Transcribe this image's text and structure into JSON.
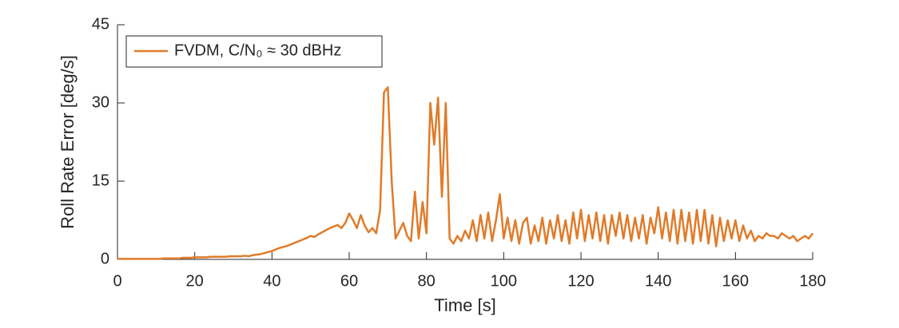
{
  "chart_data": {
    "type": "line",
    "xlabel": "Time [s]",
    "ylabel": "Roll Rate Error [deg/s]",
    "x": [
      0,
      1,
      2,
      3,
      4,
      5,
      6,
      7,
      8,
      9,
      10,
      11,
      12,
      13,
      14,
      15,
      16,
      17,
      18,
      19,
      20,
      21,
      22,
      23,
      24,
      25,
      26,
      27,
      28,
      29,
      30,
      31,
      32,
      33,
      34,
      35,
      36,
      37,
      38,
      39,
      40,
      41,
      42,
      43,
      44,
      45,
      46,
      47,
      48,
      49,
      50,
      51,
      52,
      53,
      54,
      55,
      56,
      57,
      58,
      59,
      60,
      61,
      62,
      63,
      64,
      65,
      66,
      67,
      68,
      69,
      70,
      71,
      72,
      73,
      74,
      75,
      76,
      77,
      78,
      79,
      80,
      81,
      82,
      83,
      84,
      85,
      86,
      87,
      88,
      89,
      90,
      91,
      92,
      93,
      94,
      95,
      96,
      97,
      98,
      99,
      100,
      101,
      102,
      103,
      104,
      105,
      106,
      107,
      108,
      109,
      110,
      111,
      112,
      113,
      114,
      115,
      116,
      117,
      118,
      119,
      120,
      121,
      122,
      123,
      124,
      125,
      126,
      127,
      128,
      129,
      130,
      131,
      132,
      133,
      134,
      135,
      136,
      137,
      138,
      139,
      140,
      141,
      142,
      143,
      144,
      145,
      146,
      147,
      148,
      149,
      150,
      151,
      152,
      153,
      154,
      155,
      156,
      157,
      158,
      159,
      160,
      161,
      162,
      163,
      164,
      165,
      166,
      167,
      168,
      169,
      170,
      171,
      172,
      173,
      174,
      175,
      176,
      177,
      178,
      179,
      180
    ],
    "series": [
      {
        "name": "FVDM, C/N₀ ≈ 30 dBHz",
        "color": "#e07b2a",
        "values": [
          0.1,
          0.1,
          0.1,
          0.1,
          0.1,
          0.1,
          0.1,
          0.1,
          0.1,
          0.1,
          0.1,
          0.1,
          0.2,
          0.2,
          0.2,
          0.2,
          0.2,
          0.3,
          0.3,
          0.3,
          0.4,
          0.4,
          0.4,
          0.4,
          0.5,
          0.5,
          0.5,
          0.5,
          0.5,
          0.6,
          0.6,
          0.6,
          0.6,
          0.7,
          0.6,
          0.8,
          0.9,
          1.0,
          1.2,
          1.4,
          1.6,
          1.9,
          2.2,
          2.4,
          2.6,
          2.9,
          3.2,
          3.5,
          3.8,
          4.1,
          4.5,
          4.3,
          4.8,
          5.2,
          5.6,
          6.0,
          6.3,
          6.6,
          6.0,
          7.0,
          8.8,
          7.5,
          6.0,
          8.5,
          6.5,
          5.2,
          6.0,
          5.0,
          9.5,
          32.0,
          33.0,
          15.0,
          4.0,
          5.5,
          7.0,
          4.5,
          3.5,
          13.0,
          4.0,
          11.0,
          5.0,
          30.0,
          22.0,
          31.0,
          12.0,
          30.0,
          4.0,
          3.0,
          4.5,
          3.5,
          5.5,
          4.0,
          7.5,
          3.5,
          8.5,
          4.0,
          9.0,
          3.5,
          7.5,
          12.5,
          4.0,
          8.0,
          3.5,
          7.5,
          3.0,
          7.0,
          8.0,
          3.0,
          6.5,
          3.5,
          8.0,
          3.0,
          7.5,
          4.0,
          8.5,
          3.5,
          7.5,
          3.0,
          9.0,
          4.0,
          9.5,
          3.5,
          8.5,
          4.0,
          9.0,
          3.5,
          8.5,
          3.0,
          8.5,
          4.5,
          9.0,
          4.0,
          8.5,
          3.5,
          8.0,
          4.0,
          8.5,
          3.0,
          8.0,
          5.0,
          10.0,
          4.0,
          9.0,
          3.5,
          9.5,
          3.0,
          9.5,
          3.5,
          9.0,
          3.0,
          9.5,
          3.5,
          9.5,
          3.0,
          8.5,
          2.5,
          8.0,
          3.5,
          7.5,
          4.0,
          7.5,
          3.5,
          6.5,
          4.0,
          5.5,
          3.5,
          4.5,
          4.0,
          5.0,
          4.5,
          4.5,
          4.0,
          5.0,
          4.5,
          4.0,
          4.5,
          3.5,
          4.0,
          4.5,
          4.0,
          5.0
        ]
      }
    ],
    "xlim": [
      0,
      180
    ],
    "xticks": [
      0,
      20,
      40,
      60,
      80,
      100,
      120,
      140,
      160,
      180
    ],
    "ylim": [
      0,
      45
    ],
    "yticks": [
      0,
      15,
      30,
      45
    ],
    "grid": false,
    "legend": "upper left"
  }
}
